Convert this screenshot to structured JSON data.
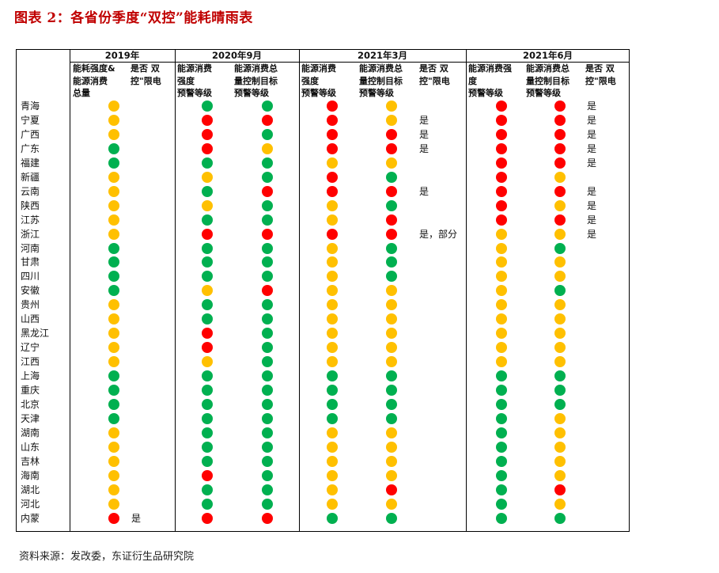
{
  "title": "图表 2：各省份季度“双控”能耗晴雨表",
  "source": "资料来源：发改委，东证衍生品研究院",
  "colors": {
    "R": "#ff0000",
    "Y": "#ffc000",
    "G": "#00b050"
  },
  "periods": [
    "2019年",
    "2020年9月",
    "2021年3月",
    "2021年6月"
  ],
  "columns": [
    "能耗强度&\n能源消费\n总量",
    "是否 双\n控\"限电",
    "能源消费\n强度\n预警等级",
    "能源消费总\n量控制目标\n预警等级",
    "能源消费\n强度\n预警等级",
    "能源消费总\n量控制目标\n预警等级",
    "是否 双\n控\"限电",
    "能源消费强\n度\n预警等级",
    "能源消费总\n量控制目标\n预警等级",
    "是否 双\n控\"限电"
  ],
  "rows": [
    {
      "province": "青海",
      "c2019": "Y",
      "l2019": "",
      "a": "G",
      "b": "G",
      "c": "R",
      "d": "Y",
      "l21": "",
      "e": "R",
      "f": "R",
      "l26": "是"
    },
    {
      "province": "宁夏",
      "c2019": "Y",
      "l2019": "",
      "a": "R",
      "b": "R",
      "c": "R",
      "d": "Y",
      "l21": "是",
      "e": "R",
      "f": "R",
      "l26": "是"
    },
    {
      "province": "广西",
      "c2019": "Y",
      "l2019": "",
      "a": "R",
      "b": "G",
      "c": "R",
      "d": "R",
      "l21": "是",
      "e": "R",
      "f": "R",
      "l26": "是"
    },
    {
      "province": "广东",
      "c2019": "G",
      "l2019": "",
      "a": "R",
      "b": "Y",
      "c": "R",
      "d": "R",
      "l21": "是",
      "e": "R",
      "f": "R",
      "l26": "是"
    },
    {
      "province": "福建",
      "c2019": "G",
      "l2019": "",
      "a": "G",
      "b": "G",
      "c": "Y",
      "d": "Y",
      "l21": "",
      "e": "R",
      "f": "R",
      "l26": "是"
    },
    {
      "province": "新疆",
      "c2019": "Y",
      "l2019": "",
      "a": "Y",
      "b": "G",
      "c": "R",
      "d": "G",
      "l21": "",
      "e": "R",
      "f": "Y",
      "l26": ""
    },
    {
      "province": "云南",
      "c2019": "Y",
      "l2019": "",
      "a": "G",
      "b": "R",
      "c": "R",
      "d": "R",
      "l21": "是",
      "e": "R",
      "f": "R",
      "l26": "是"
    },
    {
      "province": "陕西",
      "c2019": "Y",
      "l2019": "",
      "a": "Y",
      "b": "G",
      "c": "Y",
      "d": "G",
      "l21": "",
      "e": "R",
      "f": "Y",
      "l26": "是"
    },
    {
      "province": "江苏",
      "c2019": "Y",
      "l2019": "",
      "a": "G",
      "b": "G",
      "c": "Y",
      "d": "R",
      "l21": "",
      "e": "R",
      "f": "R",
      "l26": "是"
    },
    {
      "province": "浙江",
      "c2019": "Y",
      "l2019": "",
      "a": "R",
      "b": "R",
      "c": "R",
      "d": "R",
      "l21": "是，部分",
      "e": "Y",
      "f": "Y",
      "l26": "是"
    },
    {
      "province": "河南",
      "c2019": "G",
      "l2019": "",
      "a": "G",
      "b": "G",
      "c": "Y",
      "d": "G",
      "l21": "",
      "e": "Y",
      "f": "G",
      "l26": ""
    },
    {
      "province": "甘肃",
      "c2019": "G",
      "l2019": "",
      "a": "G",
      "b": "G",
      "c": "Y",
      "d": "G",
      "l21": "",
      "e": "Y",
      "f": "Y",
      "l26": ""
    },
    {
      "province": "四川",
      "c2019": "G",
      "l2019": "",
      "a": "G",
      "b": "G",
      "c": "Y",
      "d": "G",
      "l21": "",
      "e": "Y",
      "f": "Y",
      "l26": ""
    },
    {
      "province": "安徽",
      "c2019": "G",
      "l2019": "",
      "a": "Y",
      "b": "R",
      "c": "Y",
      "d": "Y",
      "l21": "",
      "e": "Y",
      "f": "G",
      "l26": ""
    },
    {
      "province": "贵州",
      "c2019": "Y",
      "l2019": "",
      "a": "G",
      "b": "G",
      "c": "Y",
      "d": "Y",
      "l21": "",
      "e": "Y",
      "f": "Y",
      "l26": ""
    },
    {
      "province": "山西",
      "c2019": "Y",
      "l2019": "",
      "a": "G",
      "b": "G",
      "c": "Y",
      "d": "Y",
      "l21": "",
      "e": "Y",
      "f": "Y",
      "l26": ""
    },
    {
      "province": "黑龙江",
      "c2019": "Y",
      "l2019": "",
      "a": "R",
      "b": "G",
      "c": "Y",
      "d": "Y",
      "l21": "",
      "e": "Y",
      "f": "Y",
      "l26": ""
    },
    {
      "province": "辽宁",
      "c2019": "Y",
      "l2019": "",
      "a": "R",
      "b": "G",
      "c": "Y",
      "d": "Y",
      "l21": "",
      "e": "Y",
      "f": "Y",
      "l26": ""
    },
    {
      "province": "江西",
      "c2019": "Y",
      "l2019": "",
      "a": "Y",
      "b": "G",
      "c": "Y",
      "d": "Y",
      "l21": "",
      "e": "Y",
      "f": "Y",
      "l26": ""
    },
    {
      "province": "上海",
      "c2019": "G",
      "l2019": "",
      "a": "G",
      "b": "G",
      "c": "G",
      "d": "G",
      "l21": "",
      "e": "G",
      "f": "G",
      "l26": ""
    },
    {
      "province": "重庆",
      "c2019": "G",
      "l2019": "",
      "a": "G",
      "b": "G",
      "c": "G",
      "d": "G",
      "l21": "",
      "e": "G",
      "f": "G",
      "l26": ""
    },
    {
      "province": "北京",
      "c2019": "G",
      "l2019": "",
      "a": "G",
      "b": "G",
      "c": "G",
      "d": "G",
      "l21": "",
      "e": "G",
      "f": "G",
      "l26": ""
    },
    {
      "province": "天津",
      "c2019": "G",
      "l2019": "",
      "a": "G",
      "b": "G",
      "c": "G",
      "d": "G",
      "l21": "",
      "e": "G",
      "f": "Y",
      "l26": ""
    },
    {
      "province": "湖南",
      "c2019": "Y",
      "l2019": "",
      "a": "G",
      "b": "G",
      "c": "Y",
      "d": "Y",
      "l21": "",
      "e": "G",
      "f": "Y",
      "l26": ""
    },
    {
      "province": "山东",
      "c2019": "Y",
      "l2019": "",
      "a": "G",
      "b": "G",
      "c": "Y",
      "d": "Y",
      "l21": "",
      "e": "G",
      "f": "Y",
      "l26": ""
    },
    {
      "province": "吉林",
      "c2019": "Y",
      "l2019": "",
      "a": "G",
      "b": "G",
      "c": "Y",
      "d": "Y",
      "l21": "",
      "e": "G",
      "f": "Y",
      "l26": ""
    },
    {
      "province": "海南",
      "c2019": "Y",
      "l2019": "",
      "a": "R",
      "b": "G",
      "c": "Y",
      "d": "Y",
      "l21": "",
      "e": "G",
      "f": "Y",
      "l26": ""
    },
    {
      "province": "湖北",
      "c2019": "Y",
      "l2019": "",
      "a": "G",
      "b": "G",
      "c": "Y",
      "d": "R",
      "l21": "",
      "e": "G",
      "f": "R",
      "l26": ""
    },
    {
      "province": "河北",
      "c2019": "Y",
      "l2019": "",
      "a": "G",
      "b": "G",
      "c": "Y",
      "d": "Y",
      "l21": "",
      "e": "G",
      "f": "Y",
      "l26": ""
    },
    {
      "province": "内蒙",
      "c2019": "R",
      "l2019": "是",
      "a": "R",
      "b": "R",
      "c": "G",
      "d": "G",
      "l21": "",
      "e": "G",
      "f": "G",
      "l26": ""
    }
  ]
}
